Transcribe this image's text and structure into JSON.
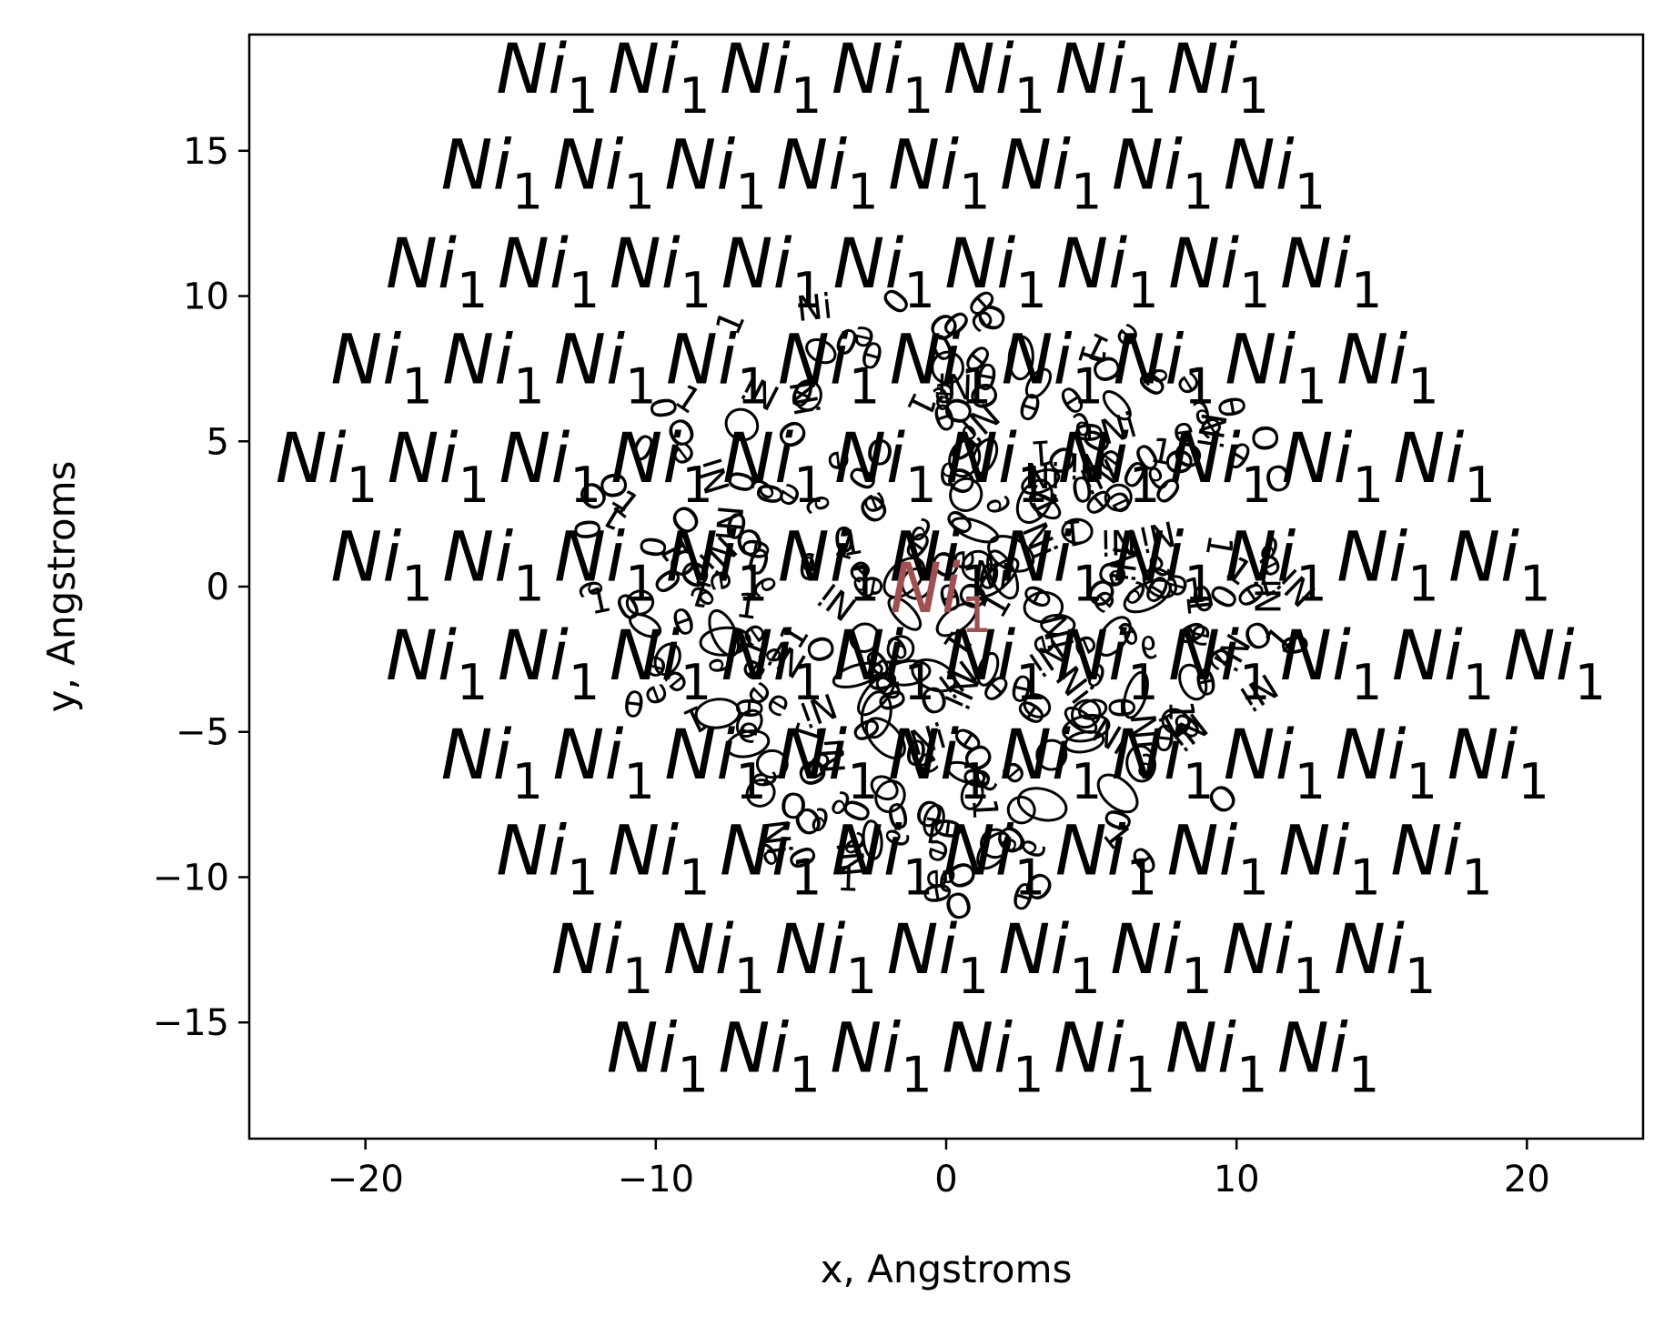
{
  "chart_data": {
    "type": "scatter",
    "xlabel": "x, Angstroms",
    "ylabel": "y, Angstroms",
    "xlim": [
      -24,
      24
    ],
    "ylim": [
      -19,
      19
    ],
    "x_ticks": [
      -20,
      -10,
      0,
      10,
      20
    ],
    "y_ticks": [
      -15,
      -10,
      -5,
      0,
      5,
      10,
      15
    ],
    "x_tick_labels": [
      "−20",
      "−10",
      "0",
      "10",
      "20"
    ],
    "y_tick_labels": [
      "−15",
      "−10",
      "−5",
      "0",
      "5",
      "10",
      "15"
    ],
    "grid": false,
    "atom_label": {
      "element": "Ni",
      "index": "1"
    },
    "center_atom": {
      "x": 0,
      "y": 0,
      "color": "#a05050"
    },
    "atom_rows": [
      {
        "y": 17,
        "x_start": -15.5,
        "count": 7
      },
      {
        "y": 13.7,
        "x_start": -17.4,
        "count": 8
      },
      {
        "y": 10.3,
        "x_start": -19.3,
        "count": 9
      },
      {
        "y": 7,
        "x_start": -21.2,
        "count": 10
      },
      {
        "y": 3.6,
        "x_start": -23.1,
        "count": 11
      },
      {
        "y": 0.2,
        "x_start": -21.2,
        "count": 11
      },
      {
        "y": -3.2,
        "x_start": -19.3,
        "count": 11
      },
      {
        "y": -6.6,
        "x_start": -17.4,
        "count": 10
      },
      {
        "y": -9.9,
        "x_start": -15.5,
        "count": 9
      },
      {
        "y": -13.3,
        "x_start": -13.6,
        "count": 8
      },
      {
        "y": -16.7,
        "x_start": -11.7,
        "count": 7
      }
    ],
    "atom_spacing_x": 3.85,
    "overlap_region": {
      "center": [
        0,
        0
      ],
      "rx": 12.5,
      "ry": 11
    }
  }
}
